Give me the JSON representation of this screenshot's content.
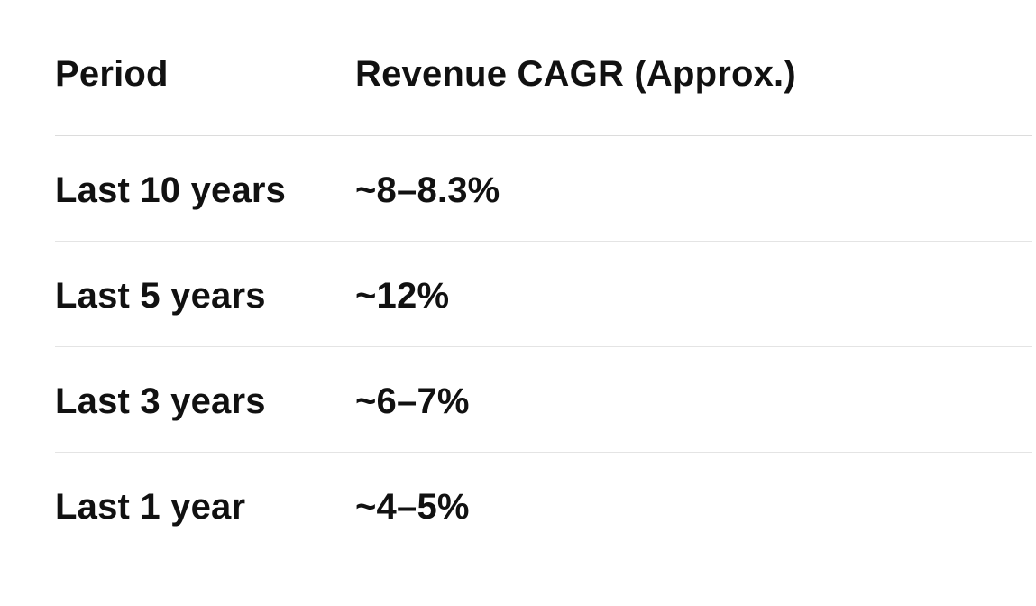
{
  "table": {
    "headers": [
      "Period",
      "Revenue CAGR (Approx.)"
    ],
    "rows": [
      [
        "Last 10 years",
        "~8–8.3%"
      ],
      [
        "Last 5 years",
        "~12%"
      ],
      [
        "Last 3 years",
        "~6–7%"
      ],
      [
        "Last 1 year",
        "~4–5%"
      ]
    ]
  }
}
